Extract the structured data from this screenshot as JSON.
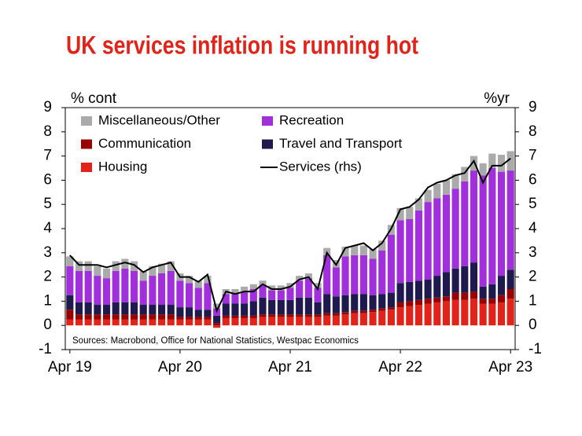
{
  "chart_data": {
    "type": "bar",
    "title": "UK services inflation is running hot",
    "y_label": "% cont",
    "y2_label": "%yr",
    "note": "Sources: Macrobond, Office for National Statistics, Westpac Economics",
    "stacked": true,
    "categories": [
      "Apr 19",
      null,
      null,
      null,
      null,
      null,
      null,
      null,
      null,
      null,
      null,
      null,
      "Apr 20",
      null,
      null,
      null,
      null,
      null,
      null,
      null,
      null,
      null,
      null,
      null,
      "Apr 21",
      null,
      null,
      null,
      null,
      null,
      null,
      null,
      null,
      null,
      null,
      null,
      "Apr 22",
      null,
      null,
      null,
      null,
      null,
      null,
      null,
      null,
      null,
      null,
      null,
      "Apr 23"
    ],
    "series": [
      {
        "name": "Housing",
        "color": "#e2231a",
        "values": [
          0.25,
          0.25,
          0.25,
          0.25,
          0.25,
          0.25,
          0.25,
          0.25,
          0.25,
          0.25,
          0.25,
          0.25,
          0.25,
          0.25,
          0.25,
          0.25,
          -0.1,
          0.3,
          0.3,
          0.3,
          0.3,
          0.35,
          0.35,
          0.35,
          0.35,
          0.35,
          0.35,
          0.35,
          0.4,
          0.4,
          0.45,
          0.5,
          0.5,
          0.55,
          0.6,
          0.65,
          0.75,
          0.8,
          0.85,
          0.9,
          0.95,
          1.0,
          1.05,
          1.05,
          1.1,
          0.9,
          0.9,
          0.95,
          1.1
        ]
      },
      {
        "name": "Communication",
        "color": "#9b0000",
        "values": [
          0.4,
          0.2,
          0.2,
          0.2,
          0.2,
          0.2,
          0.2,
          0.2,
          0.2,
          0.2,
          0.2,
          0.2,
          0.1,
          0.1,
          0.1,
          0.1,
          0.1,
          0.1,
          0.1,
          0.1,
          0.1,
          0.1,
          0.1,
          0.1,
          0.1,
          0.1,
          0.1,
          0.1,
          0.1,
          0.1,
          0.1,
          0.1,
          0.1,
          0.1,
          0.1,
          0.1,
          0.2,
          0.2,
          0.2,
          0.2,
          0.2,
          0.2,
          0.3,
          0.3,
          0.3,
          0.2,
          0.2,
          0.3,
          0.4
        ]
      },
      {
        "name": "Travel and Transport",
        "color": "#1f1a4d",
        "values": [
          0.6,
          0.5,
          0.5,
          0.4,
          0.4,
          0.5,
          0.5,
          0.5,
          0.4,
          0.4,
          0.4,
          0.4,
          0.4,
          0.4,
          0.3,
          0.3,
          0.3,
          0.5,
          0.5,
          0.5,
          0.6,
          0.7,
          0.6,
          0.6,
          0.6,
          0.7,
          0.7,
          0.5,
          0.8,
          0.7,
          0.7,
          0.7,
          0.7,
          0.6,
          0.6,
          0.6,
          0.8,
          0.8,
          0.8,
          0.8,
          0.9,
          1.0,
          1.0,
          1.1,
          1.2,
          0.5,
          0.6,
          0.8,
          0.8
        ]
      },
      {
        "name": "Recreation",
        "color": "#a12fdc",
        "values": [
          1.2,
          1.3,
          1.3,
          1.2,
          1.1,
          1.3,
          1.4,
          1.3,
          1.0,
          1.2,
          1.3,
          1.4,
          1.1,
          1.0,
          0.9,
          1.1,
          0.3,
          0.4,
          0.4,
          0.5,
          0.5,
          0.5,
          0.4,
          0.4,
          0.5,
          0.7,
          0.8,
          0.6,
          1.6,
          1.2,
          1.6,
          1.6,
          1.6,
          1.5,
          1.8,
          2.4,
          2.6,
          2.6,
          2.9,
          3.2,
          3.2,
          3.2,
          3.3,
          3.5,
          3.8,
          4.6,
          4.8,
          4.3,
          4.1
        ]
      },
      {
        "name": "Miscellaneous/Other",
        "color": "#aaaaaa",
        "values": [
          0.4,
          0.4,
          0.4,
          0.4,
          0.4,
          0.4,
          0.4,
          0.4,
          0.4,
          0.4,
          0.4,
          0.4,
          0.3,
          0.3,
          0.3,
          0.3,
          0.2,
          0.2,
          0.2,
          0.2,
          0.2,
          0.2,
          0.2,
          0.2,
          0.2,
          0.2,
          0.2,
          0.2,
          0.3,
          0.3,
          0.4,
          0.4,
          0.4,
          0.4,
          0.4,
          0.4,
          0.5,
          0.5,
          0.5,
          0.5,
          0.6,
          0.6,
          0.6,
          0.6,
          0.6,
          0.5,
          0.6,
          0.7,
          0.8
        ]
      },
      {
        "name": "Services (rhs)",
        "color": "#000000",
        "type": "line",
        "axis": "y2",
        "values": [
          2.9,
          2.5,
          2.5,
          2.5,
          2.4,
          2.5,
          2.6,
          2.5,
          2.2,
          2.4,
          2.5,
          2.6,
          2.0,
          2.0,
          1.8,
          2.1,
          0.6,
          1.4,
          1.3,
          1.4,
          1.4,
          1.7,
          1.5,
          1.5,
          1.6,
          1.9,
          2.0,
          1.5,
          3.0,
          2.5,
          3.2,
          3.3,
          3.4,
          3.1,
          3.4,
          4.0,
          4.8,
          4.9,
          5.2,
          5.7,
          5.9,
          6.0,
          6.2,
          6.3,
          6.8,
          5.9,
          6.6,
          6.6,
          6.9
        ]
      }
    ],
    "ylim": [
      -1,
      9
    ],
    "yticks": [
      -1,
      0,
      1,
      2,
      3,
      4,
      5,
      6,
      7,
      8,
      9
    ],
    "y2lim": [
      -1,
      9
    ],
    "y2ticks": [
      -1,
      0,
      1,
      2,
      3,
      4,
      5,
      6,
      7,
      8,
      9
    ],
    "legend": "top-left"
  }
}
